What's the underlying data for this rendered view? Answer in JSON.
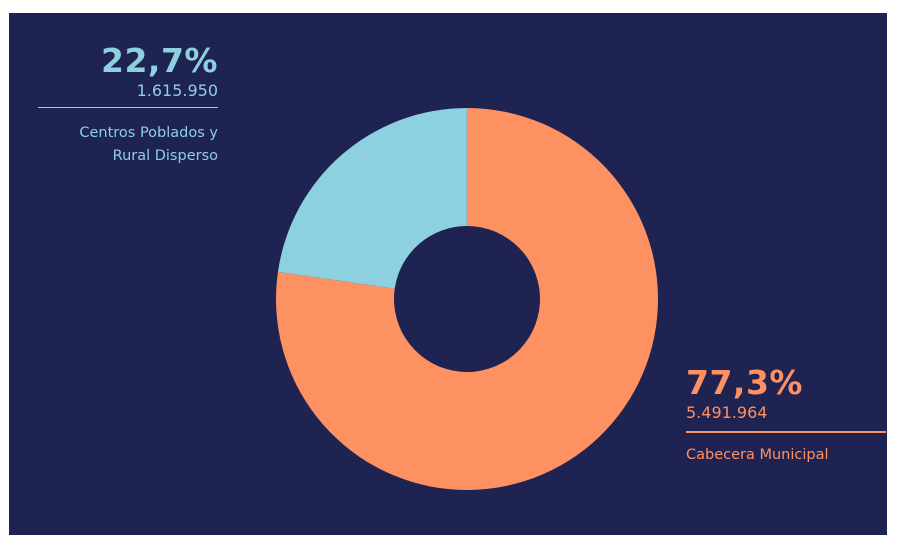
{
  "chart_data": {
    "type": "pie",
    "donut": true,
    "slices": [
      {
        "label": "Centros Poblados y Rural Disperso",
        "label_lines": [
          "Centros Poblados y",
          "Rural Disperso"
        ],
        "percent_label": "22,7%",
        "count_label": "1.615.950",
        "value": 1615950,
        "percent": 22.7,
        "color": "#8dd0e0"
      },
      {
        "label": "Cabecera Municipal",
        "label_lines": [
          "Cabecera Municipal"
        ],
        "percent_label": "77,3%",
        "count_label": "5.491.964",
        "value": 5491964,
        "percent": 77.3,
        "color": "#fe9162"
      }
    ],
    "background": "#1f2351"
  }
}
